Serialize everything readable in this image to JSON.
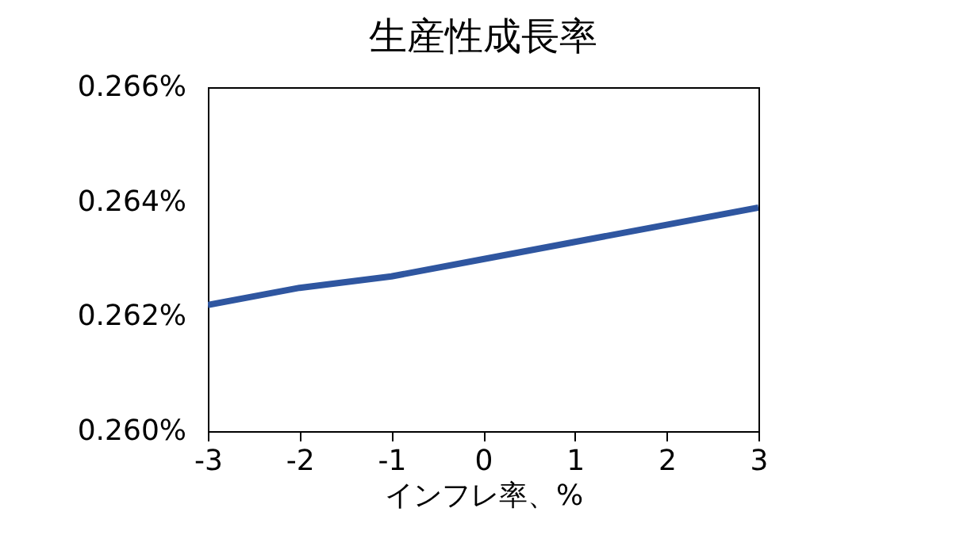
{
  "chart_data": {
    "type": "line",
    "title": "生産性成長率",
    "xlabel": "インフレ率、%",
    "x": [
      -3,
      -2,
      -1,
      0,
      1,
      2,
      3
    ],
    "series": [
      {
        "color": "#2f56a0",
        "values": [
          0.2622,
          0.2625,
          0.2627,
          0.263,
          0.2633,
          0.2636,
          0.2639
        ]
      }
    ],
    "xlim": [
      -3,
      3
    ],
    "xticks": [
      -3,
      -2,
      -1,
      0,
      1,
      2,
      3
    ],
    "ylim": [
      0.26,
      0.266
    ],
    "yticks": [
      {
        "value": 0.26,
        "label": "0.260%"
      },
      {
        "value": 0.262,
        "label": "0.262%"
      },
      {
        "value": 0.264,
        "label": "0.264%"
      },
      {
        "value": 0.266,
        "label": "0.266%"
      }
    ],
    "grid": false,
    "legend": false,
    "marker": "none",
    "line_style": "solid"
  }
}
